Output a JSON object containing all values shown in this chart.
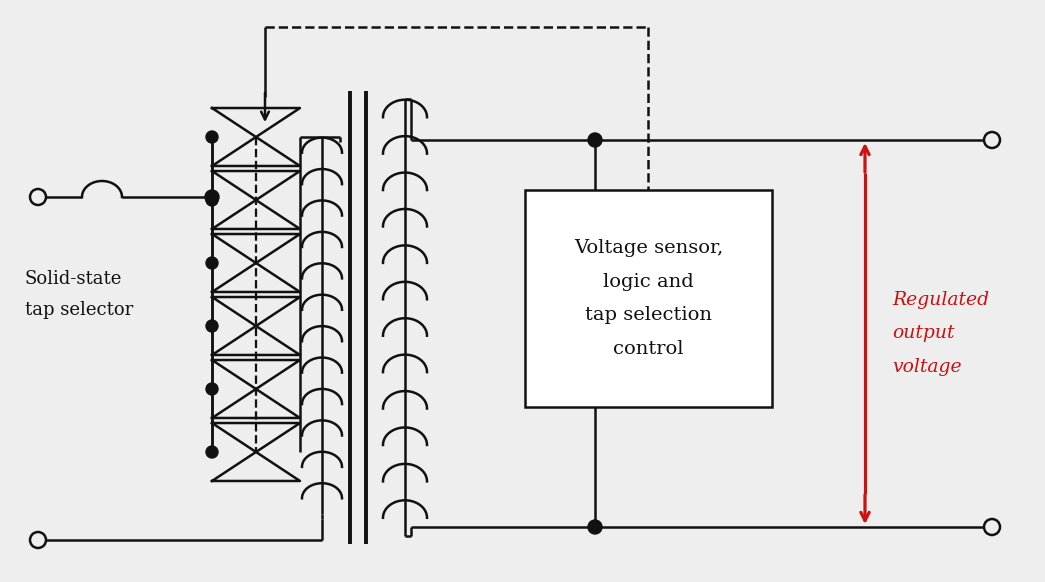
{
  "bg_color": "#eeeeee",
  "line_color": "#111111",
  "red_color": "#cc1111",
  "box_label": "Voltage sensor,\nlogic and\ntap selection\ncontrol",
  "label_solid_state": "Solid-state\ntap selector",
  "label_regulated": "Regulated\noutput\nvoltage",
  "fig_width": 10.45,
  "fig_height": 5.82,
  "dpi": 100,
  "n_taps": 6,
  "n_primary_turns": 12,
  "n_secondary_turns": 12
}
